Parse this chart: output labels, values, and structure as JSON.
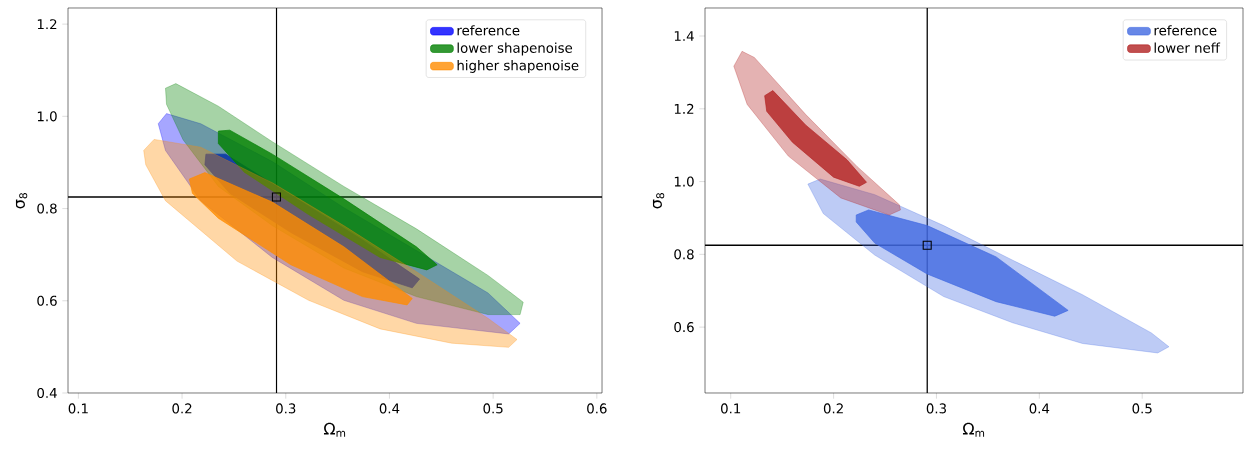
{
  "chart_data": [
    {
      "type": "area",
      "xlabel": "Ω$_{m}$",
      "ylabel": "σ$_{8}$",
      "xlim": [
        0.09,
        0.605
      ],
      "ylim": [
        0.4,
        1.235
      ],
      "xticks": [
        0.1,
        0.2,
        0.3,
        0.4,
        0.5,
        0.6
      ],
      "yticks": [
        0.4,
        0.6,
        0.8,
        {
          "value": 1.0,
          "label": "1.0"
        },
        1.2
      ],
      "legend": "top right",
      "ref_lines": [
        {
          "axis": "x",
          "value": 0.291,
          "color": "#000000"
        },
        {
          "axis": "y",
          "value": 0.825,
          "color": "#000000"
        }
      ],
      "series": [
        {
          "color": "#0000ff",
          "x": [
            0.177,
            0.185,
            0.218,
            0.287,
            0.356,
            0.426,
            0.495,
            0.526,
            0.515,
            0.426,
            0.356,
            0.287,
            0.218,
            0.184
          ],
          "values": [
            0.984,
            1.006,
            0.984,
            0.902,
            0.802,
            0.709,
            0.617,
            0.551,
            0.528,
            0.551,
            0.601,
            0.694,
            0.817,
            0.926
          ]
        },
        {
          "name": "reference",
          "color": "#0000ff",
          "x": [
            0.223,
            0.242,
            0.305,
            0.374,
            0.429,
            0.422,
            0.374,
            0.305,
            0.246,
            0.222
          ],
          "values": [
            0.918,
            0.918,
            0.829,
            0.732,
            0.647,
            0.628,
            0.663,
            0.748,
            0.833,
            0.895
          ]
        },
        {
          "color": "#008000",
          "x": [
            0.184,
            0.194,
            0.235,
            0.287,
            0.356,
            0.426,
            0.495,
            0.529,
            0.526,
            0.495,
            0.426,
            0.356,
            0.287,
            0.235,
            0.201,
            0.185
          ],
          "values": [
            1.061,
            1.071,
            1.022,
            0.945,
            0.848,
            0.756,
            0.655,
            0.597,
            0.57,
            0.57,
            0.609,
            0.671,
            0.763,
            0.848,
            0.949,
            1.026
          ]
        },
        {
          "name": "lower shapenoise",
          "color": "#008000",
          "x": [
            0.235,
            0.246,
            0.287,
            0.356,
            0.426,
            0.446,
            0.436,
            0.391,
            0.322,
            0.26,
            0.235
          ],
          "values": [
            0.968,
            0.97,
            0.918,
            0.821,
            0.717,
            0.678,
            0.667,
            0.694,
            0.787,
            0.879,
            0.941
          ]
        },
        {
          "color": "#ff8c00",
          "x": [
            0.163,
            0.173,
            0.218,
            0.287,
            0.356,
            0.426,
            0.495,
            0.523,
            0.515,
            0.46,
            0.391,
            0.322,
            0.253,
            0.184,
            0.165
          ],
          "values": [
            0.926,
            0.95,
            0.933,
            0.856,
            0.763,
            0.663,
            0.562,
            0.516,
            0.499,
            0.508,
            0.539,
            0.601,
            0.686,
            0.817,
            0.895
          ]
        },
        {
          "name": "higher shapenoise",
          "color": "#ff8c00",
          "x": [
            0.207,
            0.222,
            0.287,
            0.356,
            0.422,
            0.417,
            0.374,
            0.305,
            0.235,
            0.21
          ],
          "values": [
            0.864,
            0.878,
            0.814,
            0.717,
            0.605,
            0.591,
            0.609,
            0.678,
            0.779,
            0.833
          ]
        },
        {
          "type": "scatter",
          "marker": "square",
          "color": "#000000",
          "x": [
            0.291
          ],
          "values": [
            0.825
          ]
        }
      ]
    },
    {
      "type": "area",
      "xlabel": "Ω$_{m}$",
      "ylabel": "σ$_{8}$",
      "xlim": [
        0.075,
        0.598
      ],
      "ylim": [
        0.419,
        1.477
      ],
      "xticks": [
        0.1,
        0.2,
        0.3,
        0.4,
        0.5
      ],
      "yticks": [
        0.6,
        0.8,
        {
          "value": 1.0,
          "label": "1.0"
        },
        1.2,
        1.4
      ],
      "legend": "top right",
      "ref_lines": [
        {
          "axis": "x",
          "value": 0.291,
          "color": "#000000"
        },
        {
          "axis": "y",
          "value": 0.825,
          "color": "#000000"
        }
      ],
      "series": [
        {
          "color": "#4169e1",
          "x": [
            0.175,
            0.187,
            0.24,
            0.307,
            0.374,
            0.442,
            0.509,
            0.526,
            0.515,
            0.442,
            0.374,
            0.307,
            0.24,
            0.19
          ],
          "values": [
            0.993,
            1.007,
            0.964,
            0.879,
            0.784,
            0.689,
            0.584,
            0.546,
            0.529,
            0.555,
            0.612,
            0.684,
            0.798,
            0.912
          ]
        },
        {
          "name": "reference",
          "color": "#4169e1",
          "x": [
            0.222,
            0.234,
            0.291,
            0.358,
            0.428,
            0.415,
            0.358,
            0.291,
            0.24,
            0.222
          ],
          "values": [
            0.908,
            0.922,
            0.879,
            0.793,
            0.646,
            0.63,
            0.67,
            0.746,
            0.831,
            0.889
          ]
        },
        {
          "color": "#b22222",
          "x": [
            0.103,
            0.111,
            0.123,
            0.173,
            0.223,
            0.264,
            0.265,
            0.254,
            0.207,
            0.156,
            0.116
          ],
          "values": [
            1.317,
            1.358,
            1.341,
            1.184,
            1.041,
            0.936,
            0.922,
            0.908,
            0.955,
            1.07,
            1.212
          ]
        },
        {
          "name": "lower neff",
          "color": "#b22222",
          "x": [
            0.133,
            0.141,
            0.173,
            0.213,
            0.232,
            0.225,
            0.2,
            0.16,
            0.135
          ],
          "values": [
            1.236,
            1.25,
            1.155,
            1.06,
            0.998,
            0.987,
            1.012,
            1.108,
            1.193
          ]
        },
        {
          "type": "scatter",
          "marker": "square",
          "color": "#000000",
          "x": [
            0.291
          ],
          "values": [
            0.825
          ]
        }
      ]
    }
  ]
}
